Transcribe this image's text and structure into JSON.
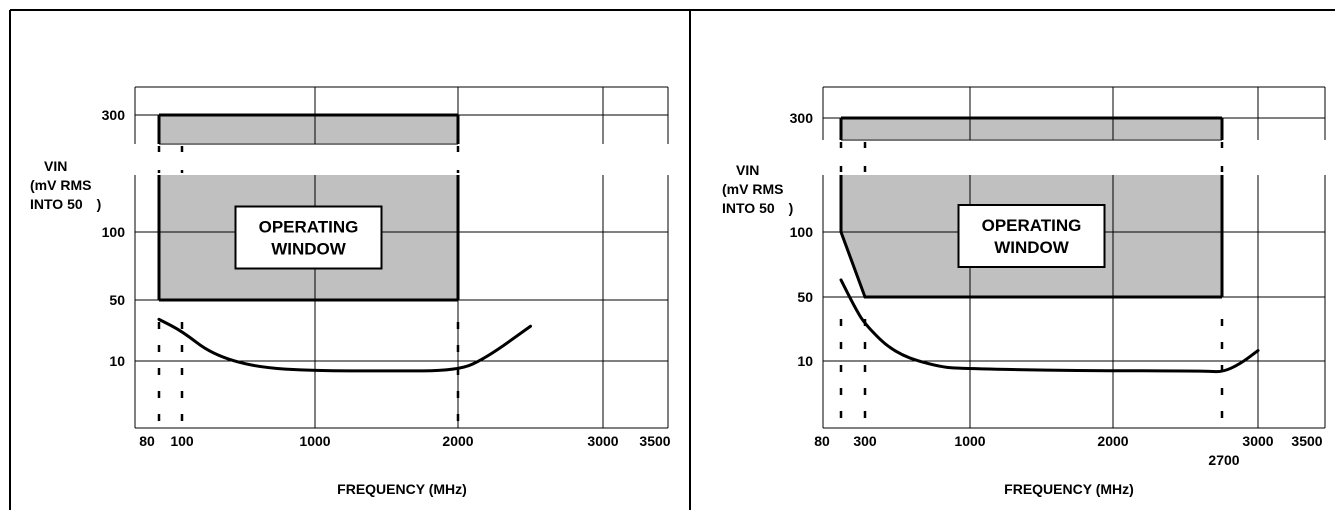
{
  "chart_data": [
    {
      "type": "area",
      "ylabel_lines": [
        "VIN",
        "(mV RMS",
        "INTO 50 )"
      ],
      "xlabel": "FREQUENCY (MHz)",
      "x_ticks": [
        {
          "label": "80",
          "value": 80
        },
        {
          "label": "100",
          "value": 100
        },
        {
          "label": "1000",
          "value": 1000
        },
        {
          "label": "2000",
          "value": 2000
        },
        {
          "label": "3000",
          "value": 3000
        },
        {
          "label": "3500",
          "value": 3500
        }
      ],
      "y_ticks": [
        {
          "label": "300",
          "value": 300
        },
        {
          "label": "100",
          "value": 100
        },
        {
          "label": "50",
          "value": 50
        },
        {
          "label": "10",
          "value": 10
        }
      ],
      "window": {
        "label_lines": [
          "OPERATING",
          "WINDOW"
        ],
        "x_range": [
          80,
          2000
        ],
        "y_range": [
          50,
          300
        ],
        "lower_edge": [
          [
            80,
            50
          ],
          [
            2000,
            50
          ]
        ]
      },
      "markers_x": [
        80,
        100,
        2000
      ],
      "sensitivity_curve": [
        [
          80,
          30
        ],
        [
          100,
          22
        ],
        [
          300,
          12
        ],
        [
          600,
          9
        ],
        [
          1000,
          8.5
        ],
        [
          1500,
          8.5
        ],
        [
          2000,
          8.5
        ],
        [
          2200,
          11
        ],
        [
          2500,
          25
        ]
      ],
      "grid": true
    },
    {
      "type": "area",
      "ylabel_lines": [
        "VIN",
        "(mV RMS",
        "INTO 50 )"
      ],
      "xlabel": "FREQUENCY (MHz)",
      "x_ticks": [
        {
          "label": "80",
          "value": 80
        },
        {
          "label": "300",
          "value": 300
        },
        {
          "label": "1000",
          "value": 1000
        },
        {
          "label": "2000",
          "value": 2000
        },
        {
          "label": "2700",
          "value": 2700
        },
        {
          "label": "3000",
          "value": 3000
        },
        {
          "label": "3500",
          "value": 3500
        }
      ],
      "y_ticks": [
        {
          "label": "300",
          "value": 300
        },
        {
          "label": "100",
          "value": 100
        },
        {
          "label": "50",
          "value": 50
        },
        {
          "label": "10",
          "value": 10
        }
      ],
      "window": {
        "label_lines": [
          "OPERATING",
          "WINDOW"
        ],
        "x_range": [
          80,
          2700
        ],
        "y_range": [
          50,
          300
        ],
        "lower_edge": [
          [
            80,
            100
          ],
          [
            300,
            50
          ],
          [
            2700,
            50
          ]
        ]
      },
      "markers_x": [
        80,
        300,
        2700
      ],
      "sensitivity_curve": [
        [
          80,
          60
        ],
        [
          200,
          40
        ],
        [
          300,
          25
        ],
        [
          500,
          12
        ],
        [
          800,
          9
        ],
        [
          1000,
          8.8
        ],
        [
          1500,
          8.6
        ],
        [
          2000,
          8.5
        ],
        [
          2600,
          8.5
        ],
        [
          2700,
          8.3
        ],
        [
          2850,
          9.5
        ],
        [
          3000,
          13
        ]
      ],
      "grid": true
    }
  ]
}
